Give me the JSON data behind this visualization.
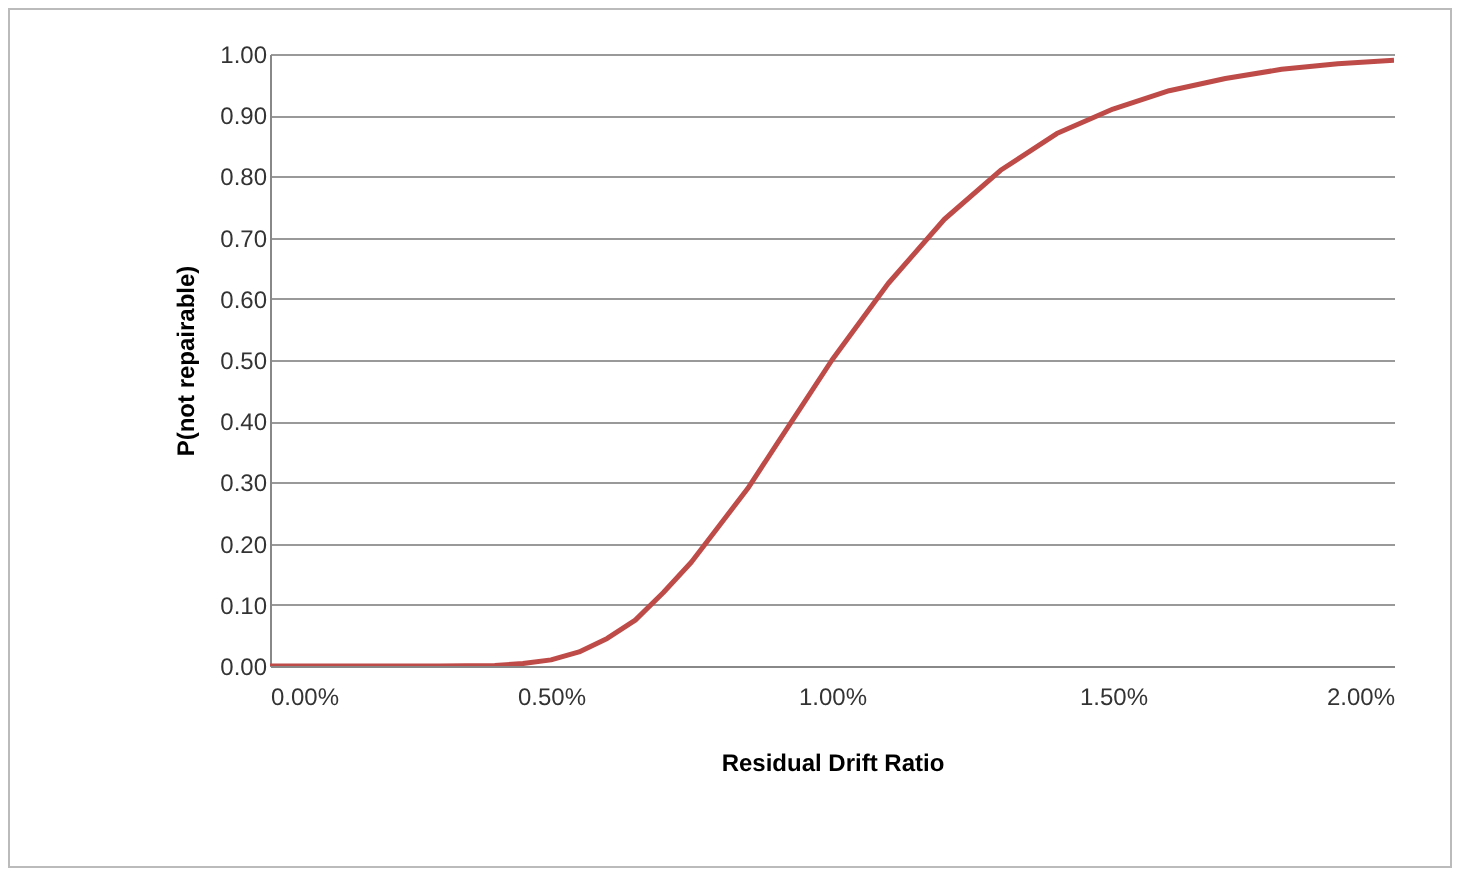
{
  "chart_data": {
    "type": "line",
    "xlabel": "Residual Drift Ratio",
    "ylabel": "P(not repairable)",
    "x": [
      0,
      0.1,
      0.2,
      0.3,
      0.4,
      0.45,
      0.5,
      0.55,
      0.6,
      0.65,
      0.7,
      0.75,
      0.8,
      0.85,
      0.9,
      0.95,
      1.0,
      1.1,
      1.2,
      1.3,
      1.4,
      1.5,
      1.6,
      1.7,
      1.8,
      1.9,
      2.0
    ],
    "series": [
      {
        "color": "#be4b48",
        "values": [
          0,
          0,
          0,
          0,
          0.001,
          0.004,
          0.01,
          0.023,
          0.045,
          0.075,
          0.12,
          0.17,
          0.23,
          0.29,
          0.36,
          0.43,
          0.5,
          0.625,
          0.73,
          0.81,
          0.87,
          0.91,
          0.94,
          0.96,
          0.975,
          0.984,
          0.99
        ]
      }
    ],
    "xlim": [
      0,
      2
    ],
    "xticks": [
      {
        "value": 0,
        "label": "0.00%"
      },
      {
        "value": 0.5,
        "label": "0.50%"
      },
      {
        "value": 1,
        "label": "1.00%"
      },
      {
        "value": 1.5,
        "label": "1.50%"
      },
      {
        "value": 2,
        "label": "2.00%"
      }
    ],
    "ylim": [
      0,
      1
    ],
    "yticks": [
      {
        "value": 0,
        "label": "0.00"
      },
      {
        "value": 0.1,
        "label": "0.10"
      },
      {
        "value": 0.2,
        "label": "0.20"
      },
      {
        "value": 0.3,
        "label": "0.30"
      },
      {
        "value": 0.4,
        "label": "0.40"
      },
      {
        "value": 0.5,
        "label": "0.50"
      },
      {
        "value": 0.6,
        "label": "0.60"
      },
      {
        "value": 0.7,
        "label": "0.70"
      },
      {
        "value": 0.8,
        "label": "0.80"
      },
      {
        "value": 0.9,
        "label": "0.90"
      },
      {
        "value": 1,
        "label": "1.00"
      }
    ],
    "grid": "y",
    "line_style": "solid",
    "marker": "none"
  }
}
